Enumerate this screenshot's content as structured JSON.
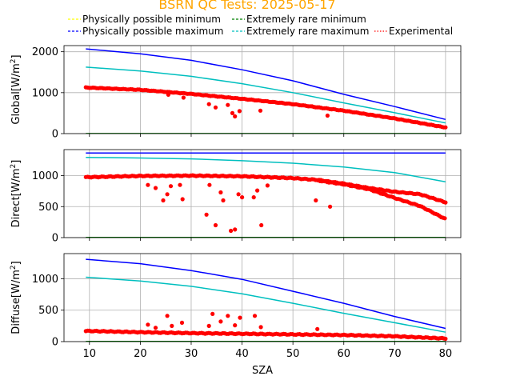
{
  "chart_data": {
    "type": "line",
    "title": "BSRN QC Tests: 2025-05-17",
    "xlabel": "SZA",
    "xlim": [
      5,
      83
    ],
    "xticks": [
      10,
      20,
      30,
      40,
      50,
      60,
      70,
      80
    ],
    "grid": true,
    "legend": {
      "placement": "top",
      "entries": [
        {
          "name": "Physically possible minimum",
          "color": "#ffff00",
          "style": "dashed"
        },
        {
          "name": "Physically possible maximum",
          "color": "#0000ff",
          "style": "dashed"
        },
        {
          "name": "Extremely rare minimum",
          "color": "#008000",
          "style": "dashed"
        },
        {
          "name": "Extremely rare maximum",
          "color": "#00bfbf",
          "style": "dashed"
        },
        {
          "name": "Experimental",
          "color": "#ff0000",
          "style": "dotted"
        }
      ]
    },
    "panels": [
      {
        "ylabel": "Global[W/m²]",
        "ylabel_base": "Global[W/m",
        "ylabel_sup": "2",
        "ylabel_end": "]",
        "ylim": [
          0,
          2150
        ],
        "yticks": [
          0,
          1000,
          2000
        ],
        "show_xticklabels": false,
        "series": [
          {
            "name": "Physically possible maximum",
            "color": "#0000ff",
            "x": [
              9.3,
              20,
              30,
              40,
              50,
              60,
              70,
              80
            ],
            "y": [
              2070,
              1950,
              1790,
              1560,
              1290,
              960,
              660,
              345
            ]
          },
          {
            "name": "Extremely rare maximum",
            "color": "#00bfbf",
            "x": [
              9.3,
              20,
              30,
              40,
              50,
              60,
              70,
              80
            ],
            "y": [
              1625,
              1530,
              1400,
              1220,
              1000,
              750,
              510,
              260
            ]
          },
          {
            "name": "Extremely rare minimum",
            "color": "#008000",
            "x": [
              9.3,
              80
            ],
            "y": [
              2,
              2
            ]
          }
        ],
        "experimental": {
          "trend_x": [
            9.3,
            20,
            30,
            40,
            50,
            60,
            70,
            80
          ],
          "trend_y": [
            1125,
            1070,
            970,
            850,
            720,
            560,
            370,
            150
          ],
          "outliers_x": [
            25.5,
            28.5,
            33.5,
            34.8,
            37.2,
            38.1,
            38.6,
            39.5,
            43.6,
            56.8
          ],
          "outliers_y": [
            950,
            880,
            720,
            640,
            700,
            500,
            420,
            550,
            560,
            440
          ]
        }
      },
      {
        "ylabel": "Direct[W/m²]",
        "ylabel_base": "Direct[W/m",
        "ylabel_sup": "2",
        "ylabel_end": "]",
        "ylim": [
          0,
          1420
        ],
        "yticks": [
          0,
          500,
          1000
        ],
        "show_xticklabels": false,
        "series": [
          {
            "name": "Physically possible maximum",
            "color": "#0000ff",
            "x": [
              9.3,
              80
            ],
            "y": [
              1365,
              1365
            ]
          },
          {
            "name": "Extremely rare maximum",
            "color": "#00bfbf",
            "x": [
              9.3,
              20,
              30,
              40,
              50,
              60,
              70,
              80
            ],
            "y": [
              1295,
              1285,
              1270,
              1240,
              1200,
              1140,
              1050,
              900
            ]
          },
          {
            "name": "Extremely rare minimum",
            "color": "#008000",
            "x": [
              9.3,
              80
            ],
            "y": [
              2,
              2
            ]
          }
        ],
        "experimental": {
          "trend_x": [
            9.3,
            20,
            30,
            40,
            50,
            55,
            60,
            65,
            70,
            75,
            80
          ],
          "trend_y": [
            975,
            995,
            1000,
            990,
            960,
            930,
            870,
            800,
            740,
            700,
            570
          ],
          "trend2_x": [
            55,
            60,
            65,
            70,
            75,
            80
          ],
          "trend2_y": [
            920,
            860,
            780,
            640,
            510,
            300
          ],
          "outliers_x": [
            21.5,
            23.0,
            24.5,
            25.3,
            26.0,
            27.8,
            28.3,
            33.0,
            33.6,
            34.8,
            35.8,
            36.3,
            37.8,
            38.6,
            39.3,
            40.0,
            42.3,
            43.0,
            43.8,
            45.0,
            54.5,
            57.3
          ],
          "outliers_y": [
            850,
            800,
            600,
            700,
            830,
            850,
            620,
            370,
            850,
            200,
            730,
            600,
            110,
            130,
            700,
            650,
            650,
            760,
            200,
            840,
            600,
            500
          ]
        }
      },
      {
        "ylabel": "Diffuse[W/m²]",
        "ylabel_base": "Diffuse[W/m",
        "ylabel_sup": "2",
        "ylabel_end": "]",
        "ylim": [
          0,
          1400
        ],
        "yticks": [
          0,
          500,
          1000
        ],
        "show_xticklabels": true,
        "series": [
          {
            "name": "Physically possible maximum",
            "color": "#0000ff",
            "x": [
              9.3,
              20,
              30,
              40,
              50,
              60,
              70,
              80
            ],
            "y": [
              1310,
              1240,
              1130,
              990,
              800,
              610,
              400,
              210
            ]
          },
          {
            "name": "Extremely rare maximum",
            "color": "#00bfbf",
            "x": [
              9.3,
              20,
              30,
              40,
              50,
              60,
              70,
              80
            ],
            "y": [
              1025,
              965,
              880,
              760,
              610,
              450,
              300,
              150
            ]
          },
          {
            "name": "Extremely rare minimum",
            "color": "#008000",
            "x": [
              9.3,
              80
            ],
            "y": [
              2,
              2
            ]
          }
        ],
        "experimental": {
          "trend_x": [
            9.3,
            20,
            30,
            40,
            50,
            60,
            70,
            80
          ],
          "trend_y": [
            170,
            150,
            135,
            125,
            115,
            105,
            85,
            50
          ],
          "outliers_x": [
            21.5,
            23.0,
            25.3,
            26.2,
            28.2,
            33.5,
            34.2,
            35.8,
            37.2,
            38.6,
            39.6,
            42.5,
            43.7,
            54.8
          ],
          "outliers_y": [
            270,
            220,
            410,
            250,
            300,
            250,
            440,
            320,
            410,
            260,
            380,
            410,
            230,
            200
          ]
        }
      }
    ]
  }
}
